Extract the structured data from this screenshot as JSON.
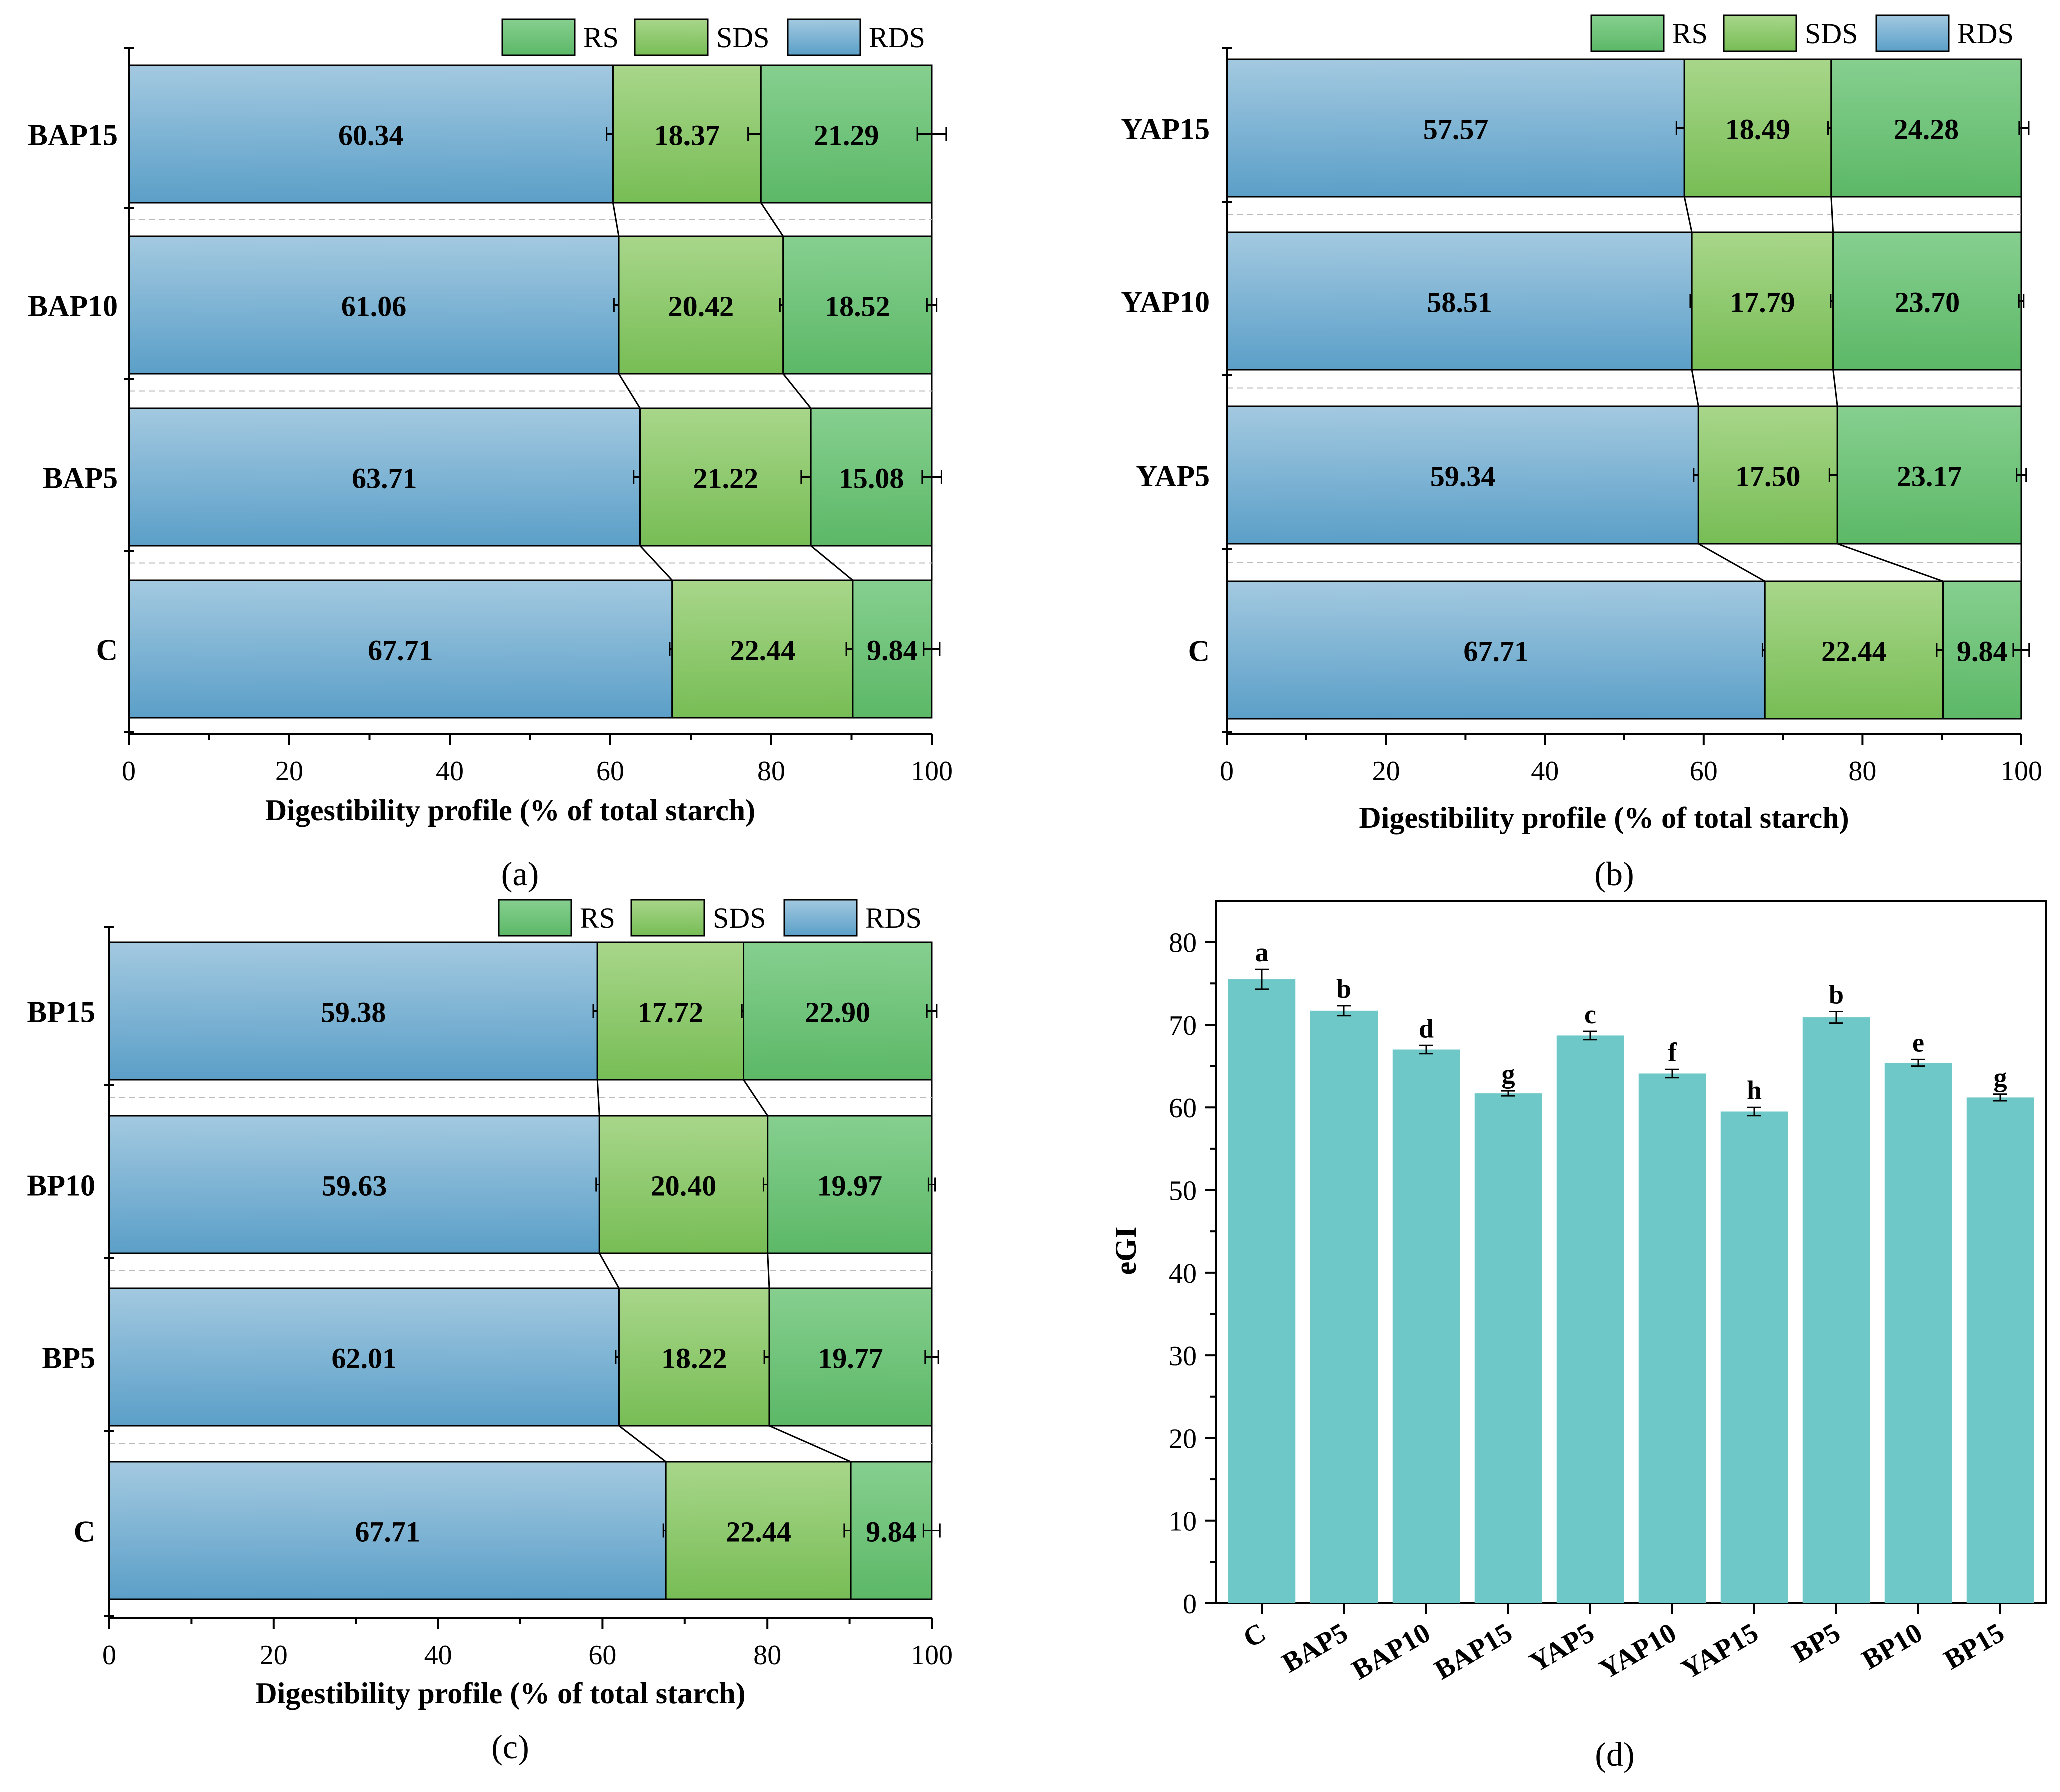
{
  "chart_data": [
    {
      "type": "bar",
      "orientation": "horizontal-stacked",
      "panel_label": "(a)",
      "xlabel": "Digestibility profile (% of total starch)",
      "xlim": [
        0,
        100
      ],
      "xticks": [
        0,
        20,
        40,
        60,
        80,
        100
      ],
      "legend": [
        "RS",
        "SDS",
        "RDS"
      ],
      "legend_position": "top-right",
      "categories": [
        "BAP15",
        "BAP10",
        "BAP5",
        "C"
      ],
      "series": [
        {
          "name": "RDS",
          "values": [
            60.34,
            61.06,
            63.71,
            67.71
          ],
          "labels": [
            "60.34",
            "61.06",
            "63.71",
            "67.71"
          ],
          "errors": [
            0.8,
            0.6,
            0.8,
            0.3
          ]
        },
        {
          "name": "SDS",
          "values": [
            18.37,
            20.42,
            21.22,
            22.44
          ],
          "labels": [
            "18.37",
            "20.42",
            "21.22",
            "22.44"
          ],
          "errors": [
            1.6,
            0.4,
            1.2,
            0.8
          ]
        },
        {
          "name": "RS",
          "values": [
            21.29,
            18.52,
            15.08,
            9.84
          ],
          "labels": [
            "21.29",
            "18.52",
            "15.08",
            "9.84"
          ],
          "errors": [
            1.8,
            0.6,
            1.2,
            1.0
          ]
        }
      ]
    },
    {
      "type": "bar",
      "orientation": "horizontal-stacked",
      "panel_label": "(b)",
      "xlabel": "Digestibility profile (% of total starch)",
      "xlim": [
        0,
        100
      ],
      "xticks": [
        0,
        20,
        40,
        60,
        80,
        100
      ],
      "legend": [
        "RS",
        "SDS",
        "RDS"
      ],
      "legend_position": "top-right",
      "categories": [
        "YAP15",
        "YAP10",
        "YAP5",
        "C"
      ],
      "series": [
        {
          "name": "RDS",
          "values": [
            57.57,
            58.51,
            59.34,
            67.71
          ],
          "labels": [
            "57.57",
            "58.51",
            "59.34",
            "67.71"
          ],
          "errors": [
            1.0,
            0.2,
            0.6,
            0.3
          ]
        },
        {
          "name": "SDS",
          "values": [
            18.49,
            17.79,
            17.5,
            22.44
          ],
          "labels": [
            "18.49",
            "17.79",
            "17.50",
            "22.44"
          ],
          "errors": [
            0.4,
            0.3,
            1.0,
            0.8
          ]
        },
        {
          "name": "RS",
          "values": [
            24.28,
            23.7,
            23.17,
            9.84
          ],
          "labels": [
            "24.28",
            "23.70",
            "23.17",
            "9.84"
          ],
          "errors": [
            0.6,
            0.3,
            0.6,
            1.0
          ]
        }
      ]
    },
    {
      "type": "bar",
      "orientation": "horizontal-stacked",
      "panel_label": "(c)",
      "xlabel": "Digestibility profile (% of total starch)",
      "xlim": [
        0,
        100
      ],
      "xticks": [
        0,
        20,
        40,
        60,
        80,
        100
      ],
      "legend": [
        "RS",
        "SDS",
        "RDS"
      ],
      "legend_position": "top-right",
      "categories": [
        "BP15",
        "BP10",
        "BP5",
        "C"
      ],
      "series": [
        {
          "name": "RDS",
          "values": [
            59.38,
            59.63,
            62.01,
            67.71
          ],
          "labels": [
            "59.38",
            "59.63",
            "62.01",
            "67.71"
          ],
          "errors": [
            0.5,
            0.4,
            0.4,
            0.3
          ]
        },
        {
          "name": "SDS",
          "values": [
            17.72,
            20.4,
            18.22,
            22.44
          ],
          "labels": [
            "17.72",
            "20.40",
            "18.22",
            "22.44"
          ],
          "errors": [
            0.2,
            0.5,
            0.6,
            0.8
          ]
        },
        {
          "name": "RS",
          "values": [
            22.9,
            19.97,
            19.77,
            9.84
          ],
          "labels": [
            "22.90",
            "19.97",
            "19.77",
            "9.84"
          ],
          "errors": [
            0.6,
            0.4,
            0.8,
            1.0
          ]
        }
      ]
    },
    {
      "type": "bar",
      "panel_label": "(d)",
      "ylabel": "eGI",
      "ylim": [
        0,
        85
      ],
      "yticks": [
        0,
        10,
        20,
        30,
        40,
        50,
        60,
        70,
        80
      ],
      "categories": [
        "C",
        "BAP5",
        "BAP10",
        "BAP15",
        "YAP5",
        "YAP10",
        "YAP15",
        "BP5",
        "BP10",
        "BP15"
      ],
      "values": [
        75.5,
        71.7,
        67.0,
        61.7,
        68.7,
        64.1,
        59.5,
        70.9,
        65.4,
        61.2
      ],
      "errors": [
        1.2,
        0.6,
        0.5,
        0.3,
        0.5,
        0.5,
        0.5,
        0.7,
        0.4,
        0.4
      ],
      "annotations": [
        "a",
        "b",
        "d",
        "g",
        "c",
        "f",
        "h",
        "b",
        "e",
        "g"
      ]
    }
  ],
  "colors": {
    "RDS_top": "#a3c9e0",
    "RDS_bottom": "#5b9fc8",
    "SDS_top": "#a8d68a",
    "SDS_bottom": "#77bd55",
    "RS_top": "#86cf8f",
    "RS_bottom": "#5cb867",
    "eGI_bar": "#6fc8c8"
  }
}
